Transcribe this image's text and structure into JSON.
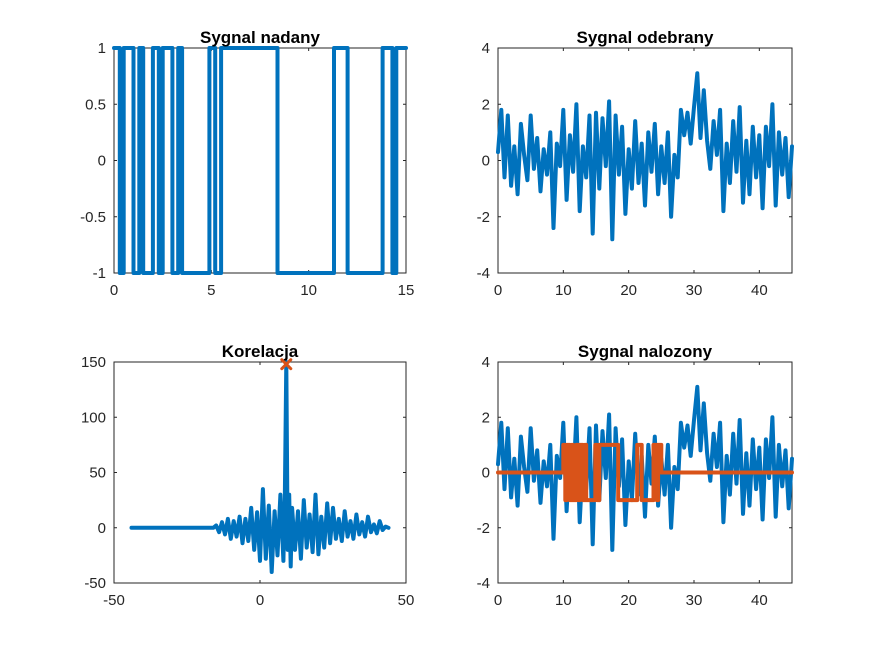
{
  "chart_data": [
    {
      "type": "line",
      "title": "Sygnal nadany",
      "xlim": [
        0,
        15
      ],
      "ylim": [
        -1,
        1
      ],
      "xticks": [
        0,
        5,
        10,
        15
      ],
      "yticks": [
        -1,
        -0.5,
        0,
        0.5,
        1
      ],
      "xtick_labels": [
        "0",
        "5",
        "10",
        "15"
      ],
      "ytick_labels": [
        "-1",
        "-0.5",
        "0",
        "0.5",
        "1"
      ],
      "grid": false,
      "series": [
        {
          "color": "#0072BD",
          "x": [
            0,
            0.3,
            0.3,
            0.5,
            0.5,
            1.0,
            1.0,
            1.3,
            1.3,
            1.5,
            1.5,
            2.0,
            2.0,
            2.3,
            2.3,
            2.5,
            2.5,
            3.0,
            3.0,
            3.3,
            3.3,
            3.5,
            3.5,
            4.9,
            4.9,
            5.2,
            5.2,
            5.5,
            5.5,
            8.4,
            8.4,
            11.3,
            11.3,
            12.0,
            12.0,
            13.8,
            13.8,
            14.3,
            14.3,
            14.5,
            14.5,
            15
          ],
          "y": [
            1,
            1,
            -1,
            -1,
            1,
            1,
            -1,
            -1,
            1,
            1,
            -1,
            -1,
            1,
            1,
            -1,
            -1,
            1,
            1,
            -1,
            -1,
            1,
            1,
            -1,
            -1,
            1,
            1,
            -1,
            -1,
            1,
            1,
            -1,
            -1,
            1,
            1,
            -1,
            -1,
            1,
            1,
            -1,
            -1,
            1,
            1
          ]
        }
      ]
    },
    {
      "type": "line",
      "title": "Sygnal odebrany",
      "xlim": [
        0,
        45
      ],
      "ylim": [
        -4,
        4
      ],
      "xticks": [
        0,
        10,
        20,
        30,
        40
      ],
      "yticks": [
        -4,
        -2,
        0,
        2,
        4
      ],
      "xtick_labels": [
        "0",
        "10",
        "20",
        "30",
        "40"
      ],
      "ytick_labels": [
        "-4",
        "-2",
        "0",
        "2",
        "4"
      ],
      "grid": false,
      "series": [
        {
          "color": "#0072BD",
          "x": [
            0,
            0.5,
            1,
            1.5,
            2,
            2.5,
            3,
            3.5,
            4,
            4.5,
            5,
            5.5,
            6,
            6.5,
            7,
            7.5,
            8,
            8.5,
            9,
            9.5,
            10,
            10.5,
            11,
            11.5,
            12,
            12.5,
            13,
            13.5,
            14,
            14.5,
            15,
            15.5,
            16,
            16.5,
            17,
            17.5,
            18,
            18.5,
            19,
            19.5,
            20,
            20.5,
            21,
            21.5,
            22,
            22.5,
            23,
            23.5,
            24,
            24.5,
            25,
            25.5,
            26,
            26.5,
            27,
            27.5,
            28,
            28.5,
            29,
            29.5,
            30,
            30.5,
            31,
            31.5,
            32,
            32.5,
            33,
            33.5,
            34,
            34.5,
            35,
            35.5,
            36,
            36.5,
            37,
            37.5,
            38,
            38.5,
            39,
            39.5,
            40,
            40.5,
            41,
            41.5,
            42,
            42.5,
            43,
            43.5,
            44,
            44.5,
            45
          ],
          "y": [
            0.3,
            1.8,
            -0.6,
            1.6,
            -0.9,
            0.5,
            -1.2,
            1.3,
            0.2,
            -0.7,
            1.6,
            -0.3,
            0.8,
            -1.1,
            0.4,
            -0.5,
            1.0,
            -2.4,
            0.6,
            -0.2,
            1.8,
            -1.4,
            0.9,
            -0.4,
            2.0,
            -1.8,
            0.5,
            -0.6,
            1.6,
            -2.6,
            1.7,
            -1.0,
            1.5,
            -0.2,
            2.1,
            -2.8,
            1.6,
            -0.5,
            1.2,
            -1.9,
            0.4,
            -1.0,
            1.4,
            -0.8,
            0.6,
            -1.6,
            1.0,
            -0.4,
            1.3,
            -1.2,
            0.5,
            -0.8,
            1.0,
            -2.0,
            0.2,
            -0.6,
            1.8,
            0.9,
            1.7,
            0.6,
            1.9,
            3.1,
            0.8,
            2.5,
            0.7,
            -0.3,
            1.4,
            0.2,
            1.8,
            -1.8,
            0.6,
            -0.8,
            1.4,
            -0.4,
            1.9,
            -1.5,
            0.7,
            -1.2,
            1.2,
            -0.6,
            0.9,
            -1.7,
            1.2,
            -0.2,
            2.0,
            -1.6,
            1.0,
            -0.5,
            0.8,
            -1.3,
            0.5
          ]
        }
      ]
    },
    {
      "type": "line",
      "title": "Korelacja",
      "xlim": [
        -50,
        50
      ],
      "ylim": [
        -50,
        150
      ],
      "xticks": [
        -50,
        0,
        50
      ],
      "yticks": [
        -50,
        0,
        50,
        100,
        150
      ],
      "xtick_labels": [
        "-50",
        "0",
        "50"
      ],
      "ytick_labels": [
        "-50",
        "0",
        "50",
        "100",
        "150"
      ],
      "grid": false,
      "series": [
        {
          "color": "#0072BD",
          "x": [
            -44,
            -16,
            -15,
            -14,
            -13,
            -12,
            -11,
            -10,
            -9,
            -8,
            -7,
            -6,
            -5,
            -4,
            -3,
            -2,
            -1,
            0,
            1,
            2,
            3,
            4,
            5,
            6,
            7,
            8,
            8.5,
            9,
            9.5,
            10,
            10.5,
            11,
            12,
            13,
            14,
            15,
            16,
            17,
            18,
            19,
            20,
            21,
            22,
            23,
            24,
            25,
            26,
            27,
            28,
            29,
            30,
            31,
            32,
            33,
            34,
            35,
            36,
            37,
            38,
            39,
            40,
            41,
            42,
            43,
            44
          ],
          "y": [
            0,
            0,
            2,
            -4,
            5,
            -6,
            8,
            -10,
            6,
            -8,
            10,
            -14,
            8,
            -12,
            18,
            -20,
            14,
            -30,
            35,
            -28,
            20,
            -40,
            15,
            -25,
            30,
            -30,
            25,
            150,
            -20,
            30,
            -35,
            18,
            -20,
            15,
            -28,
            25,
            -18,
            12,
            -22,
            30,
            -24,
            10,
            -18,
            22,
            -14,
            18,
            -10,
            8,
            -12,
            15,
            -8,
            6,
            -10,
            12,
            -6,
            5,
            -8,
            10,
            -4,
            3,
            -5,
            6,
            -2,
            1,
            0
          ]
        }
      ],
      "marker": {
        "x": 9,
        "y": 148,
        "symbol": "x",
        "color": "#D95319"
      }
    },
    {
      "type": "line",
      "title": "Sygnal nalozony",
      "xlim": [
        0,
        45
      ],
      "ylim": [
        -4,
        4
      ],
      "xticks": [
        0,
        10,
        20,
        30,
        40
      ],
      "yticks": [
        -4,
        -2,
        0,
        2,
        4
      ],
      "xtick_labels": [
        "0",
        "10",
        "20",
        "30",
        "40"
      ],
      "ytick_labels": [
        "-4",
        "-2",
        "0",
        "2",
        "4"
      ],
      "grid": false,
      "series": [
        {
          "color": "#0072BD",
          "x": [
            0,
            0.5,
            1,
            1.5,
            2,
            2.5,
            3,
            3.5,
            4,
            4.5,
            5,
            5.5,
            6,
            6.5,
            7,
            7.5,
            8,
            8.5,
            9,
            9.5,
            10,
            10.5,
            11,
            11.5,
            12,
            12.5,
            13,
            13.5,
            14,
            14.5,
            15,
            15.5,
            16,
            16.5,
            17,
            17.5,
            18,
            18.5,
            19,
            19.5,
            20,
            20.5,
            21,
            21.5,
            22,
            22.5,
            23,
            23.5,
            24,
            24.5,
            25,
            25.5,
            26,
            26.5,
            27,
            27.5,
            28,
            28.5,
            29,
            29.5,
            30,
            30.5,
            31,
            31.5,
            32,
            32.5,
            33,
            33.5,
            34,
            34.5,
            35,
            35.5,
            36,
            36.5,
            37,
            37.5,
            38,
            38.5,
            39,
            39.5,
            40,
            40.5,
            41,
            41.5,
            42,
            42.5,
            43,
            43.5,
            44,
            44.5,
            45
          ],
          "y": [
            0.3,
            1.8,
            -0.6,
            1.6,
            -0.9,
            0.5,
            -1.2,
            1.3,
            0.2,
            -0.7,
            1.6,
            -0.3,
            0.8,
            -1.1,
            0.4,
            -0.5,
            1.0,
            -2.4,
            0.6,
            -0.2,
            1.8,
            -1.4,
            0.9,
            -0.4,
            2.0,
            -1.8,
            0.5,
            -0.6,
            1.6,
            -2.6,
            1.7,
            -1.0,
            1.5,
            -0.2,
            2.1,
            -2.8,
            1.6,
            -0.5,
            1.2,
            -1.9,
            0.4,
            -1.0,
            1.4,
            -0.8,
            0.6,
            -1.6,
            1.0,
            -0.4,
            1.3,
            -1.2,
            0.5,
            -0.8,
            1.0,
            -2.0,
            0.2,
            -0.6,
            1.8,
            0.9,
            1.7,
            0.6,
            1.9,
            3.1,
            0.8,
            2.5,
            0.7,
            -0.3,
            1.4,
            0.2,
            1.8,
            -1.8,
            0.6,
            -0.8,
            1.4,
            -0.4,
            1.9,
            -1.5,
            0.7,
            -1.2,
            1.2,
            -0.6,
            0.9,
            -1.7,
            1.2,
            -0.2,
            2.0,
            -1.6,
            1.0,
            -0.5,
            0.8,
            -1.3,
            0.5
          ]
        },
        {
          "color": "#D95319",
          "x": [
            0,
            10,
            10,
            10.3,
            10.3,
            10.5,
            10.5,
            11.0,
            11.0,
            11.3,
            11.3,
            11.5,
            11.5,
            12.0,
            12.0,
            12.3,
            12.3,
            12.5,
            12.5,
            13.0,
            13.0,
            13.3,
            13.3,
            13.5,
            13.5,
            14.9,
            14.9,
            15.2,
            15.2,
            15.5,
            15.5,
            18.4,
            18.4,
            21.3,
            21.3,
            22.0,
            22.0,
            23.8,
            23.8,
            24.3,
            24.3,
            24.5,
            24.5,
            25,
            25,
            45
          ],
          "y": [
            0,
            0,
            1,
            1,
            -1,
            -1,
            1,
            1,
            -1,
            -1,
            1,
            1,
            -1,
            -1,
            1,
            1,
            -1,
            -1,
            1,
            1,
            -1,
            -1,
            1,
            1,
            -1,
            -1,
            1,
            1,
            -1,
            -1,
            1,
            1,
            -1,
            -1,
            1,
            1,
            -1,
            -1,
            1,
            1,
            -1,
            -1,
            1,
            1,
            0,
            0
          ]
        }
      ]
    }
  ]
}
